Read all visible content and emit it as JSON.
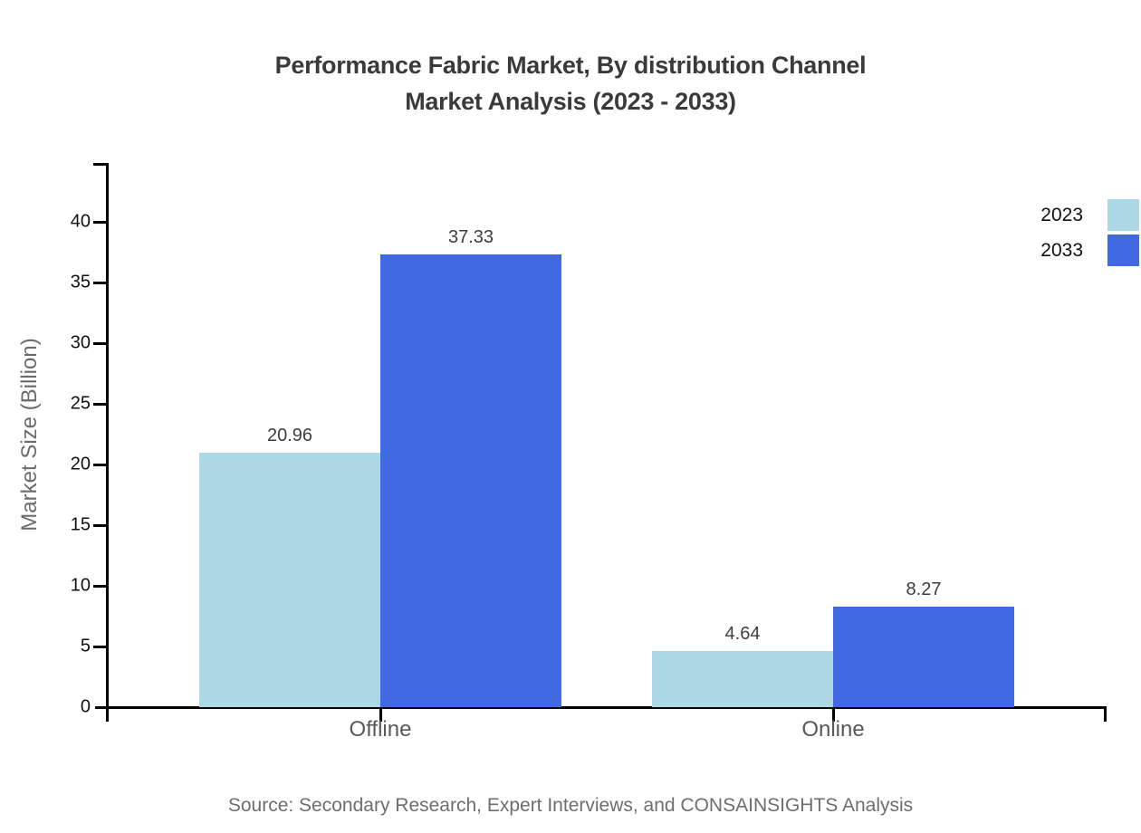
{
  "chart_data": {
    "type": "bar",
    "title_line1": "Performance Fabric Market, By distribution Channel",
    "title_line2": "Market Analysis (2023 - 2033)",
    "title": "Performance Fabric Market, By distribution Channel Market Analysis (2023 - 2033)",
    "categories": [
      "Offline",
      "Online"
    ],
    "series": [
      {
        "name": "2023",
        "color": "#ADD8E6",
        "values": [
          20.96,
          4.64
        ]
      },
      {
        "name": "2033",
        "color": "#4169E1",
        "values": [
          37.33,
          8.27
        ]
      }
    ],
    "xlabel": "",
    "ylabel": "Market Size (Billion)",
    "ylim": [
      0,
      44
    ],
    "yticks": [
      0,
      5,
      10,
      15,
      20,
      25,
      30,
      35,
      40
    ],
    "grid": false,
    "legend_position": "top-right",
    "value_labels": [
      "20.96",
      "37.33",
      "4.64",
      "8.27"
    ]
  },
  "source_note": "Source: Secondary Research, Expert Interviews, and CONSAINSIGHTS Analysis"
}
